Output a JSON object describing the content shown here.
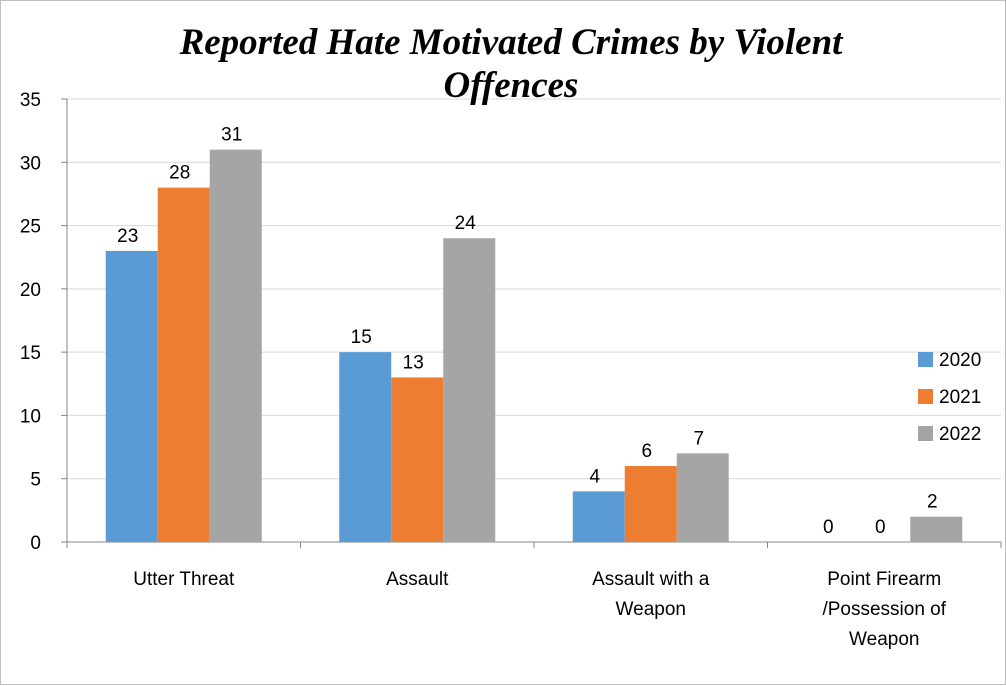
{
  "chart_data": {
    "type": "bar",
    "title_lines": [
      "Reported Hate Motivated Crimes by Violent",
      "Offences"
    ],
    "categories": [
      [
        "Utter Threat"
      ],
      [
        "Assault"
      ],
      [
        "Assault with a",
        "Weapon"
      ],
      [
        "Point Firearm",
        "/Possession of",
        "Weapon"
      ]
    ],
    "series": [
      {
        "name": "2020",
        "color": "#5B9BD5",
        "values": [
          23,
          15,
          4,
          0
        ]
      },
      {
        "name": "2021",
        "color": "#ED7D31",
        "values": [
          28,
          13,
          6,
          0
        ]
      },
      {
        "name": "2022",
        "color": "#A5A5A5",
        "values": [
          31,
          24,
          7,
          2
        ]
      }
    ],
    "ylim": [
      0,
      35
    ],
    "yticks": [
      0,
      5,
      10,
      15,
      20,
      25,
      30,
      35
    ],
    "grid": true,
    "legend_position": "right",
    "xlabel": "",
    "ylabel": ""
  }
}
